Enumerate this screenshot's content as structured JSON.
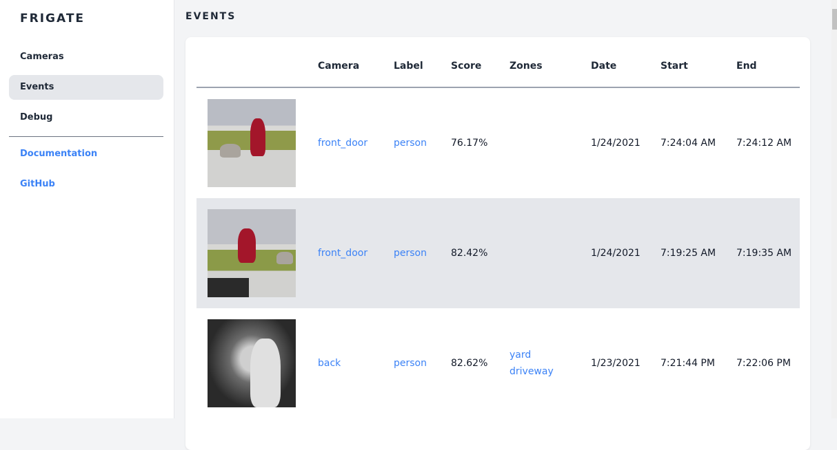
{
  "sidebar": {
    "logo": "FRIGATE",
    "items": [
      {
        "label": "Cameras"
      },
      {
        "label": "Events",
        "active": true
      },
      {
        "label": "Debug"
      }
    ],
    "links": [
      {
        "label": "Documentation"
      },
      {
        "label": "GitHub"
      }
    ]
  },
  "page_title": "EVENTS",
  "table": {
    "headers": [
      "Camera",
      "Label",
      "Score",
      "Zones",
      "Date",
      "Start",
      "End"
    ],
    "rows": [
      {
        "camera": "front_door",
        "label": "person",
        "score": "76.17%",
        "zones": [
          "",
          ""
        ],
        "date": "1/24/2021",
        "start": "7:24:04 AM",
        "end": "7:24:12 AM"
      },
      {
        "camera": "front_door",
        "label": "person",
        "score": "82.42%",
        "zones": [
          "",
          ""
        ],
        "date": "1/24/2021",
        "start": "7:19:25 AM",
        "end": "7:19:35 AM"
      },
      {
        "camera": "back",
        "label": "person",
        "score": "82.62%",
        "zones": [
          "yard",
          "driveway"
        ],
        "date": "1/23/2021",
        "start": "7:21:44 PM",
        "end": "7:22:06 PM"
      }
    ]
  },
  "colors": {
    "accent": "#3b82f6",
    "active_bg": "#e5e7eb",
    "page_bg": "#f3f4f6"
  }
}
